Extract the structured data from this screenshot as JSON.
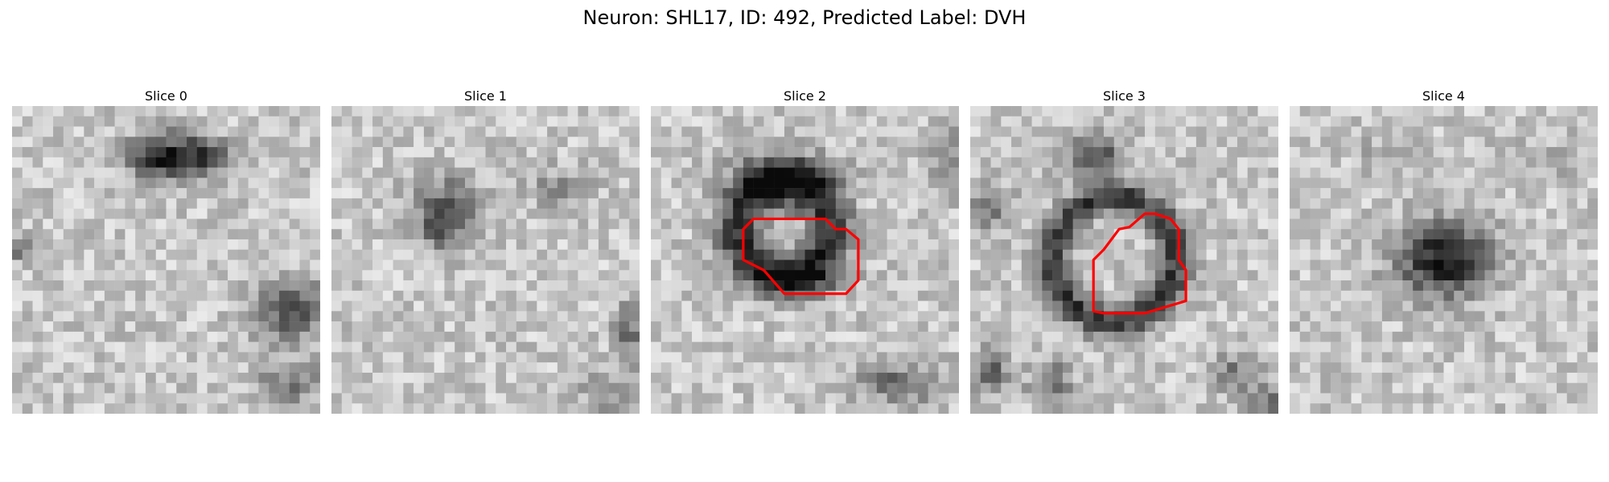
{
  "figure": {
    "title": "Neuron: SHL17, ID: 492, Predicted Label: DVH"
  },
  "panels": [
    {
      "title": "Slice 0",
      "has_outline": false,
      "dark_blob": "upper-center",
      "secondary_dark": "lower-right"
    },
    {
      "title": "Slice 1",
      "has_outline": false,
      "dark_blob": "center-left faint",
      "secondary_dark": "right edge"
    },
    {
      "title": "Slice 2",
      "has_outline": true,
      "dark_blob": "center ring",
      "secondary_dark": "bottom-right"
    },
    {
      "title": "Slice 3",
      "has_outline": true,
      "dark_blob": "center ring",
      "secondary_dark": "bottom-left"
    },
    {
      "title": "Slice 4",
      "has_outline": false,
      "dark_blob": "center",
      "secondary_dark": "none"
    }
  ],
  "colors": {
    "outline": "#ff0000",
    "background": "#ffffff"
  },
  "grid_cells": 30
}
